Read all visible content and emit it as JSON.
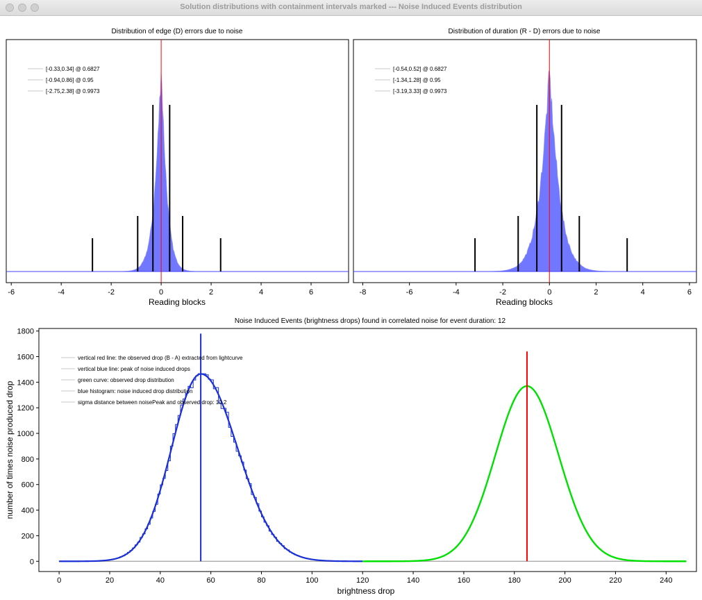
{
  "window": {
    "title": "Solution distributions with containment intervals marked --- Noise Induced Events distribution",
    "buttons": [
      "close",
      "minimize",
      "zoom"
    ]
  },
  "colors": {
    "histogram_fill": "#6b70ff",
    "histogram_edge": "#a0a3ff",
    "red_line": "#ff0000",
    "blue_line": "#1a2fd4",
    "green_curve": "#00e000",
    "interval_bar": "#000000",
    "baseline_blue": "#4040ff",
    "gray_baseline": "#a0a0a0"
  },
  "chart_data": [
    {
      "id": "edge",
      "type": "bar",
      "title": "Distribution of edge (D) errors due to noise",
      "xlabel": "Reading blocks",
      "ylabel": "",
      "xlim": [
        -6.2,
        7.5
      ],
      "xticks": [
        -6,
        -4,
        -2,
        0,
        2,
        4,
        6
      ],
      "y_axis_visible": false,
      "distribution": {
        "center": 0,
        "sigma_left": 0.36,
        "sigma_right": 0.32,
        "shape": "peaked"
      },
      "red_line_x": 0,
      "legend": [
        "[-0.33,0.34] @ 0.6827",
        "[-0.94,0.86] @ 0.95",
        "[-2.75,2.38] @ 0.9973"
      ],
      "intervals": [
        {
          "low": -0.33,
          "high": 0.34,
          "level": 0.6827
        },
        {
          "low": -0.94,
          "high": 0.86,
          "level": 0.95
        },
        {
          "low": -2.75,
          "high": 2.38,
          "level": 0.9973
        }
      ]
    },
    {
      "id": "duration",
      "type": "bar",
      "title": "Distribution of duration (R - D) errors due to noise",
      "xlabel": "Reading blocks",
      "ylabel": "",
      "xlim": [
        -8.4,
        6.3
      ],
      "xticks": [
        -8,
        -6,
        -4,
        -2,
        0,
        2,
        4,
        6
      ],
      "y_axis_visible": false,
      "distribution": {
        "center": 0,
        "sigma_left": 0.6,
        "sigma_right": 0.6,
        "shape": "peaked"
      },
      "red_line_x": 0,
      "legend": [
        "[-0.54,0.52] @ 0.6827",
        "[-1.34,1.28] @ 0.95",
        "[-3.19,3.33] @ 0.9973"
      ],
      "intervals": [
        {
          "low": -0.54,
          "high": 0.52,
          "level": 0.6827
        },
        {
          "low": -1.34,
          "high": 1.28,
          "level": 0.95
        },
        {
          "low": -3.19,
          "high": 3.33,
          "level": 0.9973
        }
      ]
    },
    {
      "id": "noise-events",
      "type": "line",
      "title": "Noise Induced Events (brightness drops) found in correlated noise for event duration: 12",
      "xlabel": "brightness drop",
      "ylabel": "number of times noise produced drop",
      "xlim": [
        -8,
        252
      ],
      "ylim": [
        -80,
        1820
      ],
      "xticks": [
        0,
        20,
        40,
        60,
        80,
        100,
        120,
        140,
        160,
        180,
        200,
        220,
        240
      ],
      "yticks": [
        0,
        200,
        400,
        600,
        800,
        1000,
        1200,
        1400,
        1600,
        1800
      ],
      "legend": [
        "vertical red line: the observed drop (B - A) extracted from lightcurve",
        "vertical blue line: peak of noise induced drops",
        "green curve: observed drop distribution",
        "blue histogram: noise induced drop distribution",
        "sigma distance between noisePeak and observed drop: 10.2"
      ],
      "blue_histogram": {
        "peak_x": 56,
        "peak_y": 1465,
        "sigma_left": 11.5,
        "sigma_right": 14.5,
        "x_range": [
          0,
          120
        ]
      },
      "green_curve": {
        "peak_x": 185,
        "peak_y": 1370,
        "sigma": 12.5,
        "x_range": [
          120,
          248
        ]
      },
      "blue_line": {
        "x": 56,
        "y_top": 1780
      },
      "red_line": {
        "x": 185,
        "y_top": 1640
      },
      "gray_baseline_range": [
        0,
        248
      ]
    }
  ]
}
